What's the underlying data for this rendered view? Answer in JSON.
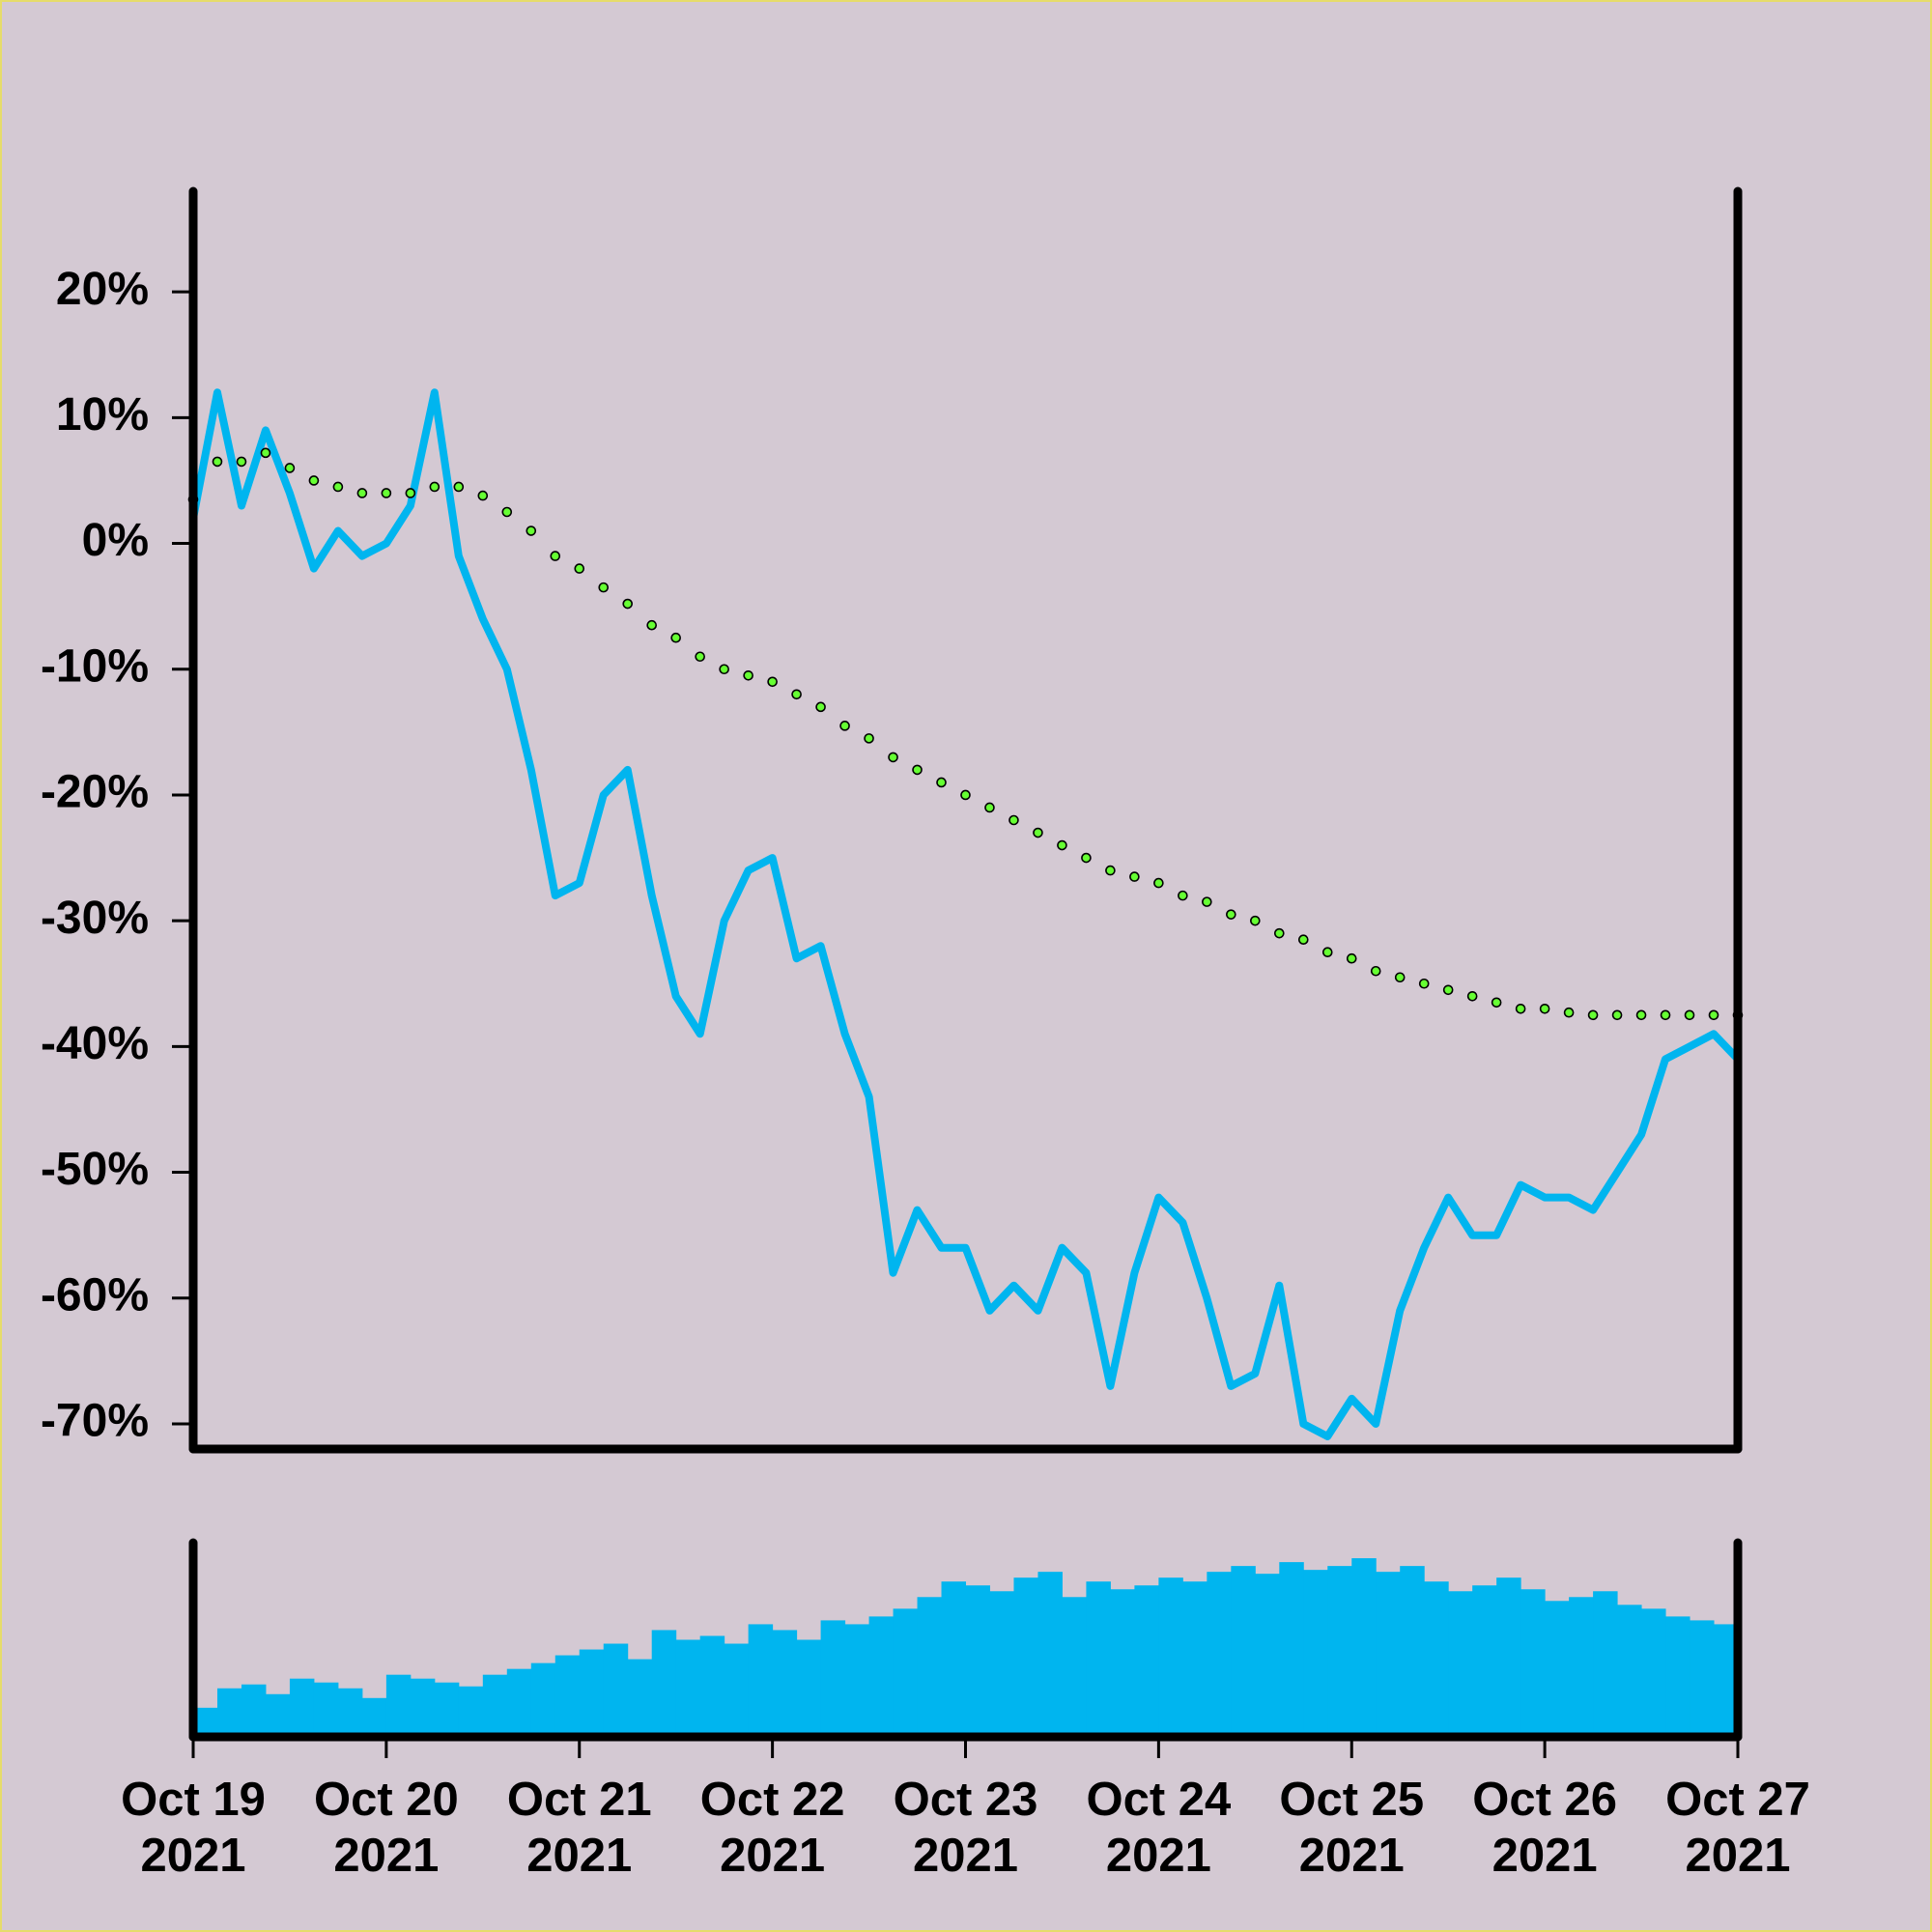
{
  "chart_data": [
    {
      "type": "line",
      "x": [
        "2021-10-19T00:00",
        "2021-10-19T03:00",
        "2021-10-19T06:00",
        "2021-10-19T09:00",
        "2021-10-19T12:00",
        "2021-10-19T15:00",
        "2021-10-19T18:00",
        "2021-10-19T21:00",
        "2021-10-20T00:00",
        "2021-10-20T03:00",
        "2021-10-20T06:00",
        "2021-10-20T09:00",
        "2021-10-20T12:00",
        "2021-10-20T15:00",
        "2021-10-20T18:00",
        "2021-10-20T21:00",
        "2021-10-21T00:00",
        "2021-10-21T03:00",
        "2021-10-21T06:00",
        "2021-10-21T09:00",
        "2021-10-21T12:00",
        "2021-10-21T15:00",
        "2021-10-21T18:00",
        "2021-10-21T21:00",
        "2021-10-22T00:00",
        "2021-10-22T03:00",
        "2021-10-22T06:00",
        "2021-10-22T09:00",
        "2021-10-22T12:00",
        "2021-10-22T15:00",
        "2021-10-22T18:00",
        "2021-10-22T21:00",
        "2021-10-23T00:00",
        "2021-10-23T03:00",
        "2021-10-23T06:00",
        "2021-10-23T09:00",
        "2021-10-23T12:00",
        "2021-10-23T15:00",
        "2021-10-23T18:00",
        "2021-10-23T21:00",
        "2021-10-24T00:00",
        "2021-10-24T03:00",
        "2021-10-24T06:00",
        "2021-10-24T09:00",
        "2021-10-24T12:00",
        "2021-10-24T15:00",
        "2021-10-24T18:00",
        "2021-10-24T21:00",
        "2021-10-25T00:00",
        "2021-10-25T03:00",
        "2021-10-25T06:00",
        "2021-10-25T09:00",
        "2021-10-25T12:00",
        "2021-10-25T15:00",
        "2021-10-25T18:00",
        "2021-10-25T21:00",
        "2021-10-26T00:00",
        "2021-10-26T03:00",
        "2021-10-26T06:00",
        "2021-10-26T09:00",
        "2021-10-26T12:00",
        "2021-10-26T15:00",
        "2021-10-26T18:00",
        "2021-10-26T21:00",
        "2021-10-27T00:00"
      ],
      "series": [
        {
          "color": "#00b5ef",
          "style": "line",
          "values": [
            2,
            12,
            3,
            9,
            4,
            -2,
            1,
            -1,
            0,
            3,
            12,
            -1,
            -6,
            -10,
            -18,
            -28,
            -27,
            -20,
            -18,
            -28,
            -36,
            -39,
            -30,
            -26,
            -25,
            -33,
            -32,
            -39,
            -44,
            -58,
            -53,
            -56,
            -56,
            -61,
            -59,
            -61,
            -56,
            -58,
            -67,
            -58,
            -52,
            -54,
            -60,
            -67,
            -66,
            -59,
            -70,
            -71,
            -68,
            -70,
            -61,
            -56,
            -52,
            -55,
            -55,
            -51,
            -52,
            -52,
            -53,
            -50,
            -47,
            -41,
            -40,
            -39,
            -41
          ]
        },
        {
          "color": "#66ff33",
          "style": "dots",
          "values": [
            3.5,
            6.5,
            6.5,
            7.2,
            6,
            5,
            4.5,
            4,
            4,
            4,
            4.5,
            4.5,
            3.8,
            2.5,
            1,
            -1,
            -2,
            -3.5,
            -4.8,
            -6.5,
            -7.5,
            -9,
            -10,
            -10.5,
            -11,
            -12,
            -13,
            -14.5,
            -15.5,
            -17,
            -18,
            -19,
            -20,
            -21,
            -22,
            -23,
            -24,
            -25,
            -26,
            -26.5,
            -27,
            -28,
            -28.5,
            -29.5,
            -30,
            -31,
            -31.5,
            -32.5,
            -33,
            -34,
            -34.5,
            -35,
            -35.5,
            -36,
            -36.5,
            -37,
            -37,
            -37.3,
            -37.5,
            -37.5,
            -37.5,
            -37.5,
            -37.5,
            -37.5,
            -37.5
          ]
        }
      ],
      "xlim": [
        "2021-10-19",
        "2021-10-27"
      ],
      "ylim": [
        -72,
        28
      ],
      "yticks": [
        {
          "value": 20,
          "label": "20%"
        },
        {
          "value": 10,
          "label": "10%"
        },
        {
          "value": 0,
          "label": "0%"
        },
        {
          "value": -10,
          "label": "-10%"
        },
        {
          "value": -20,
          "label": "-20%"
        },
        {
          "value": -30,
          "label": "-30%"
        },
        {
          "value": -40,
          "label": "-40%"
        },
        {
          "value": -50,
          "label": "-50%"
        },
        {
          "value": -60,
          "label": "-60%"
        },
        {
          "value": -70,
          "label": "-70%"
        }
      ]
    },
    {
      "type": "histogram",
      "bins": [
        "2021-10-19T00:00",
        "2021-10-19T03:00",
        "2021-10-19T06:00",
        "2021-10-19T09:00",
        "2021-10-19T12:00",
        "2021-10-19T15:00",
        "2021-10-19T18:00",
        "2021-10-19T21:00",
        "2021-10-20T00:00",
        "2021-10-20T03:00",
        "2021-10-20T06:00",
        "2021-10-20T09:00",
        "2021-10-20T12:00",
        "2021-10-20T15:00",
        "2021-10-20T18:00",
        "2021-10-20T21:00",
        "2021-10-21T00:00",
        "2021-10-21T03:00",
        "2021-10-21T06:00",
        "2021-10-21T09:00",
        "2021-10-21T12:00",
        "2021-10-21T15:00",
        "2021-10-21T18:00",
        "2021-10-21T21:00",
        "2021-10-22T00:00",
        "2021-10-22T03:00",
        "2021-10-22T06:00",
        "2021-10-22T09:00",
        "2021-10-22T12:00",
        "2021-10-22T15:00",
        "2021-10-22T18:00",
        "2021-10-22T21:00",
        "2021-10-23T00:00",
        "2021-10-23T03:00",
        "2021-10-23T06:00",
        "2021-10-23T09:00",
        "2021-10-23T12:00",
        "2021-10-23T15:00",
        "2021-10-23T18:00",
        "2021-10-23T21:00",
        "2021-10-24T00:00",
        "2021-10-24T03:00",
        "2021-10-24T06:00",
        "2021-10-24T09:00",
        "2021-10-24T12:00",
        "2021-10-24T15:00",
        "2021-10-24T18:00",
        "2021-10-24T21:00",
        "2021-10-25T00:00",
        "2021-10-25T03:00",
        "2021-10-25T06:00",
        "2021-10-25T09:00",
        "2021-10-25T12:00",
        "2021-10-25T15:00",
        "2021-10-25T18:00",
        "2021-10-25T21:00",
        "2021-10-26T00:00",
        "2021-10-26T03:00",
        "2021-10-26T06:00",
        "2021-10-26T09:00",
        "2021-10-26T12:00",
        "2021-10-26T15:00",
        "2021-10-26T18:00",
        "2021-10-26T21:00",
        "2021-10-27T00:00"
      ],
      "values": [
        15,
        25,
        27,
        22,
        30,
        28,
        25,
        20,
        32,
        30,
        28,
        26,
        32,
        35,
        38,
        42,
        45,
        48,
        40,
        55,
        50,
        52,
        48,
        58,
        55,
        50,
        60,
        58,
        62,
        66,
        72,
        80,
        78,
        75,
        82,
        85,
        72,
        80,
        76,
        78,
        82,
        80,
        85,
        88,
        84,
        90,
        86,
        88,
        92,
        85,
        88,
        80,
        75,
        78,
        82,
        76,
        70,
        72,
        75,
        68,
        66,
        62,
        60,
        58
      ],
      "color": "#00b5ef",
      "xlim": [
        "2021-10-19",
        "2021-10-27"
      ],
      "ylim": [
        0,
        100
      ],
      "xticks": [
        {
          "value": "2021-10-19",
          "label": "Oct 19\n2021"
        },
        {
          "value": "2021-10-20",
          "label": "Oct 20\n2021"
        },
        {
          "value": "2021-10-21",
          "label": "Oct 21\n2021"
        },
        {
          "value": "2021-10-22",
          "label": "Oct 22\n2021"
        },
        {
          "value": "2021-10-23",
          "label": "Oct 23\n2021"
        },
        {
          "value": "2021-10-24",
          "label": "Oct 24\n2021"
        },
        {
          "value": "2021-10-25",
          "label": "Oct 25\n2021"
        },
        {
          "value": "2021-10-26",
          "label": "Oct 26\n2021"
        },
        {
          "value": "2021-10-27",
          "label": "Oct 27\n2021"
        }
      ]
    }
  ]
}
